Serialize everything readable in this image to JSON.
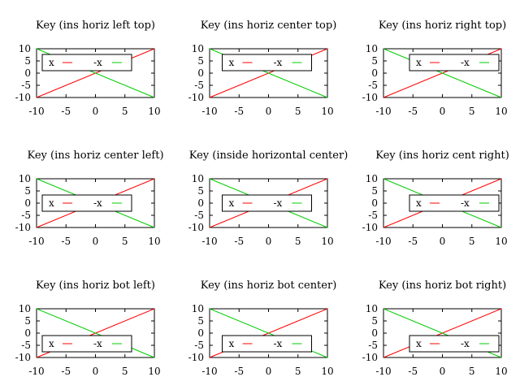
{
  "colors": {
    "series_x": "#ff0000",
    "series_neg_x": "#00cc00",
    "frame": "#000000"
  },
  "chart_data": [
    {
      "type": "line",
      "title": "Key (ins horiz left top)",
      "xlim": [
        -10,
        10
      ],
      "ylim": [
        -10,
        10
      ],
      "xticks": [
        -10,
        -5,
        0,
        5,
        10
      ],
      "yticks": [
        10,
        5,
        0,
        -5,
        -10
      ],
      "legend": {
        "placement": "inside-left-top",
        "orientation": "horizontal",
        "box": true
      },
      "series": [
        {
          "name": "x",
          "x": [
            -10,
            10
          ],
          "y": [
            -10,
            10
          ]
        },
        {
          "name": "-x",
          "x": [
            -10,
            10
          ],
          "y": [
            10,
            -10
          ]
        }
      ]
    },
    {
      "type": "line",
      "title": "Key (ins horiz center top)",
      "xlim": [
        -10,
        10
      ],
      "ylim": [
        -10,
        10
      ],
      "xticks": [
        -10,
        -5,
        0,
        5,
        10
      ],
      "yticks": [
        10,
        5,
        0,
        -5,
        -10
      ],
      "legend": {
        "placement": "inside-center-top",
        "orientation": "horizontal",
        "box": true
      },
      "series": [
        {
          "name": "x",
          "x": [
            -10,
            10
          ],
          "y": [
            -10,
            10
          ]
        },
        {
          "name": "-x",
          "x": [
            -10,
            10
          ],
          "y": [
            10,
            -10
          ]
        }
      ]
    },
    {
      "type": "line",
      "title": "Key (ins horiz right top)",
      "xlim": [
        -10,
        10
      ],
      "ylim": [
        -10,
        10
      ],
      "xticks": [
        -10,
        -5,
        0,
        5,
        10
      ],
      "yticks": [
        10,
        5,
        0,
        -5,
        -10
      ],
      "legend": {
        "placement": "inside-right-top",
        "orientation": "horizontal",
        "box": true
      },
      "series": [
        {
          "name": "x",
          "x": [
            -10,
            10
          ],
          "y": [
            -10,
            10
          ]
        },
        {
          "name": "-x",
          "x": [
            -10,
            10
          ],
          "y": [
            10,
            -10
          ]
        }
      ]
    },
    {
      "type": "line",
      "title": "Key (ins horiz center left)",
      "xlim": [
        -10,
        10
      ],
      "ylim": [
        -10,
        10
      ],
      "xticks": [
        -10,
        -5,
        0,
        5,
        10
      ],
      "yticks": [
        10,
        5,
        0,
        -5,
        -10
      ],
      "legend": {
        "placement": "inside-left-center",
        "orientation": "horizontal",
        "box": true
      },
      "series": [
        {
          "name": "x",
          "x": [
            -10,
            10
          ],
          "y": [
            -10,
            10
          ]
        },
        {
          "name": "-x",
          "x": [
            -10,
            10
          ],
          "y": [
            10,
            -10
          ]
        }
      ]
    },
    {
      "type": "line",
      "title": "Key (inside horizontal center)",
      "xlim": [
        -10,
        10
      ],
      "ylim": [
        -10,
        10
      ],
      "xticks": [
        -10,
        -5,
        0,
        5,
        10
      ],
      "yticks": [
        10,
        5,
        0,
        -5,
        -10
      ],
      "legend": {
        "placement": "inside-center",
        "orientation": "horizontal",
        "box": true
      },
      "series": [
        {
          "name": "x",
          "x": [
            -10,
            10
          ],
          "y": [
            -10,
            10
          ]
        },
        {
          "name": "-x",
          "x": [
            -10,
            10
          ],
          "y": [
            10,
            -10
          ]
        }
      ]
    },
    {
      "type": "line",
      "title": "Key (ins horiz cent right)",
      "xlim": [
        -10,
        10
      ],
      "ylim": [
        -10,
        10
      ],
      "xticks": [
        -10,
        -5,
        0,
        5,
        10
      ],
      "yticks": [
        10,
        5,
        0,
        -5,
        -10
      ],
      "legend": {
        "placement": "inside-right-center",
        "orientation": "horizontal",
        "box": true
      },
      "series": [
        {
          "name": "x",
          "x": [
            -10,
            10
          ],
          "y": [
            -10,
            10
          ]
        },
        {
          "name": "-x",
          "x": [
            -10,
            10
          ],
          "y": [
            10,
            -10
          ]
        }
      ]
    },
    {
      "type": "line",
      "title": "Key (ins horiz bot left)",
      "xlim": [
        -10,
        10
      ],
      "ylim": [
        -10,
        10
      ],
      "xticks": [
        -10,
        -5,
        0,
        5,
        10
      ],
      "yticks": [
        10,
        5,
        0,
        -5,
        -10
      ],
      "legend": {
        "placement": "inside-left-bottom",
        "orientation": "horizontal",
        "box": true
      },
      "series": [
        {
          "name": "x",
          "x": [
            -10,
            10
          ],
          "y": [
            -10,
            10
          ]
        },
        {
          "name": "-x",
          "x": [
            -10,
            10
          ],
          "y": [
            10,
            -10
          ]
        }
      ]
    },
    {
      "type": "line",
      "title": "Key (ins horiz bot center)",
      "xlim": [
        -10,
        10
      ],
      "ylim": [
        -10,
        10
      ],
      "xticks": [
        -10,
        -5,
        0,
        5,
        10
      ],
      "yticks": [
        10,
        5,
        0,
        -5,
        -10
      ],
      "legend": {
        "placement": "inside-center-bottom",
        "orientation": "horizontal",
        "box": true
      },
      "series": [
        {
          "name": "x",
          "x": [
            -10,
            10
          ],
          "y": [
            -10,
            10
          ]
        },
        {
          "name": "-x",
          "x": [
            -10,
            10
          ],
          "y": [
            10,
            -10
          ]
        }
      ]
    },
    {
      "type": "line",
      "title": "Key (ins horiz bot right)",
      "xlim": [
        -10,
        10
      ],
      "ylim": [
        -10,
        10
      ],
      "xticks": [
        -10,
        -5,
        0,
        5,
        10
      ],
      "yticks": [
        10,
        5,
        0,
        -5,
        -10
      ],
      "legend": {
        "placement": "inside-right-bottom",
        "orientation": "horizontal",
        "box": true
      },
      "series": [
        {
          "name": "x",
          "x": [
            -10,
            10
          ],
          "y": [
            -10,
            10
          ]
        },
        {
          "name": "-x",
          "x": [
            -10,
            10
          ],
          "y": [
            10,
            -10
          ]
        }
      ]
    }
  ]
}
